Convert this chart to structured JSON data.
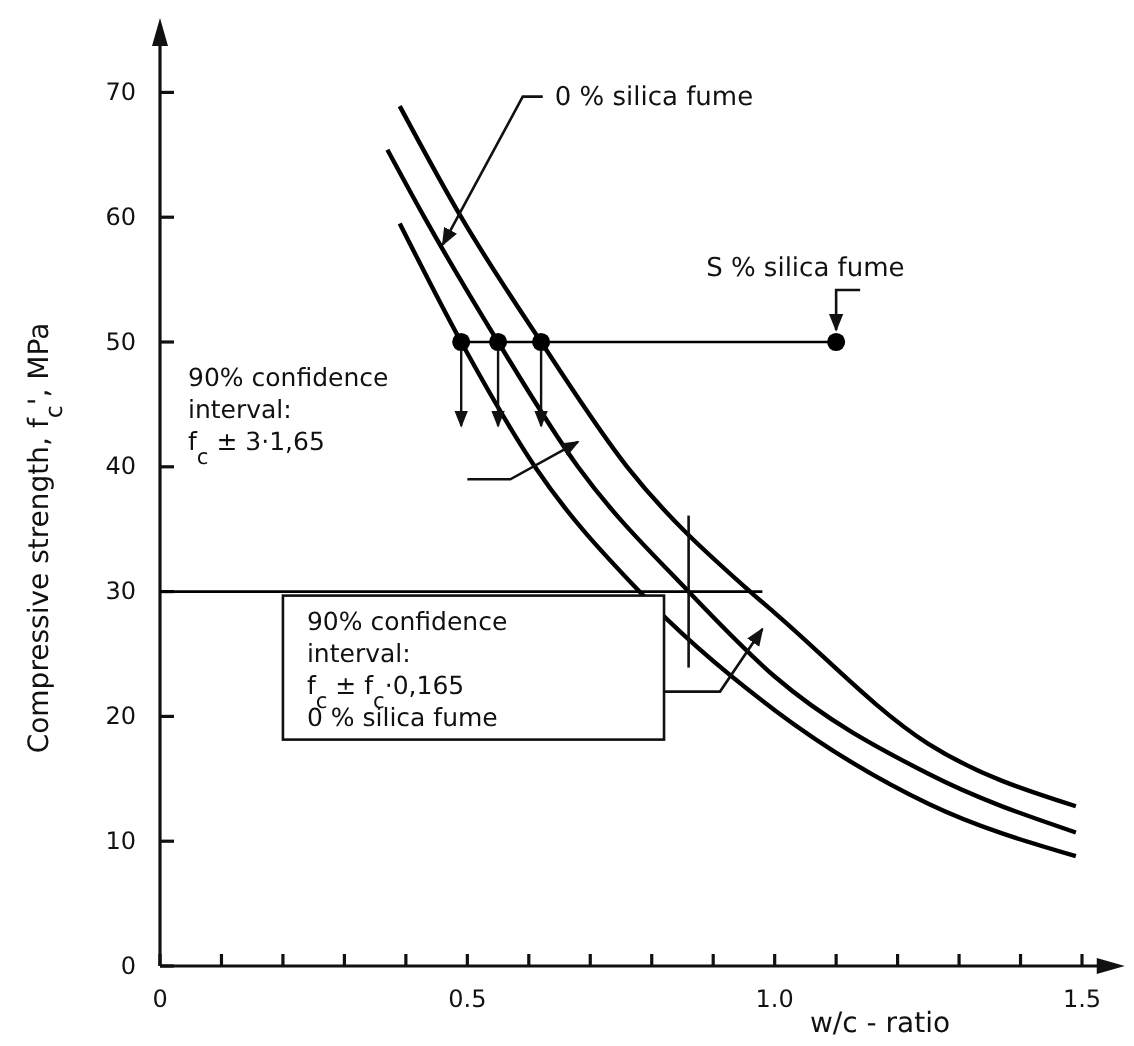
{
  "chart_data": {
    "type": "line",
    "xlabel": "w/c - ratio",
    "ylabel": "Compressive strength, f$_{c}$', MPa",
    "xlim": [
      0,
      1.55
    ],
    "ylim": [
      0,
      75
    ],
    "xticks": [
      0,
      {
        "value": 0.1,
        "label": null
      },
      {
        "value": 0.2,
        "label": null
      },
      {
        "value": 0.3,
        "label": null
      },
      {
        "value": 0.4,
        "label": null
      },
      0.5,
      {
        "value": 0.6,
        "label": null
      },
      {
        "value": 0.7,
        "label": null
      },
      {
        "value": 0.8,
        "label": null
      },
      {
        "value": 0.9,
        "label": null
      },
      {
        "value": 1,
        "label": "1.0"
      },
      {
        "value": 1.1,
        "label": null
      },
      {
        "value": 1.2,
        "label": null
      },
      {
        "value": 1.3,
        "label": null
      },
      {
        "value": 1.4,
        "label": null
      },
      1.5
    ],
    "yticks": [
      0,
      10,
      20,
      30,
      40,
      50,
      60,
      70
    ],
    "grid": false,
    "marker": "none",
    "line_style": "solid",
    "series": [
      {
        "color": "#000000",
        "x": [
          0.39,
          0.49,
          0.62,
          0.76,
          0.96,
          1.0,
          1.25,
          1.49
        ],
        "values": [
          68.9,
          60,
          50,
          40,
          30,
          28.3,
          17.8,
          12.8
        ]
      },
      {
        "color": "#000000",
        "x": [
          0.37,
          0.43,
          0.55,
          0.68,
          0.86,
          1.0,
          1.25,
          1.49
        ],
        "values": [
          65.4,
          60,
          50,
          40,
          30,
          23.2,
          15.4,
          10.7
        ]
      },
      {
        "color": "#000000",
        "x": [
          0.39,
          0.49,
          0.61,
          0.78,
          1.0,
          1.25,
          1.49
        ],
        "values": [
          59.5,
          50,
          40,
          30,
          20.5,
          13,
          8.8
        ]
      },
      {
        "color": "#000000",
        "x": [
          0.49,
          1.1
        ],
        "values": [
          50,
          50
        ]
      },
      {
        "type": "scatter",
        "color": "#000000",
        "marker": "circle",
        "x": [
          0.49,
          0.55,
          0.62,
          1.1
        ],
        "values": [
          50,
          50,
          50,
          50
        ]
      },
      {
        "color": "#000000",
        "x": [
          0,
          0.98
        ],
        "values": [
          30,
          30
        ]
      }
    ],
    "annotations": [
      {
        "text": "0 % silica fume",
        "x": 0.46,
        "y": 57.8
      },
      {
        "text": "S % silica fume",
        "x": 1.1,
        "y": 50
      },
      "90% confidence\ninterval:\nf$_{c}$ ± 3·1,65",
      "90% confidence\ninterval:\nf$_{c}$ ± f$_{c}$·0,165\n0 % silica fume"
    ]
  }
}
